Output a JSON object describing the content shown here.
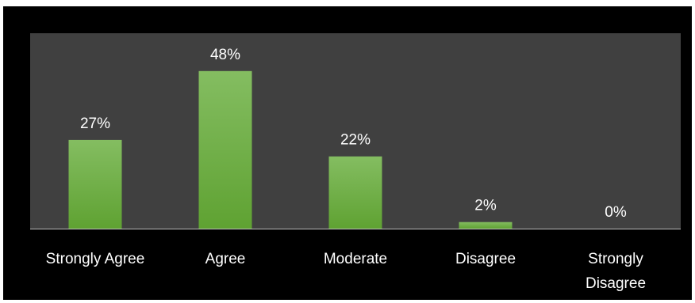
{
  "chart_data": {
    "type": "bar",
    "title": "",
    "xlabel": "",
    "ylabel": "",
    "categories": [
      [
        "Strongly Agree"
      ],
      [
        "Agree"
      ],
      [
        "Moderate"
      ],
      [
        "Disagree"
      ],
      [
        "Strongly",
        "Disagree"
      ]
    ],
    "series": [
      {
        "values": [
          27,
          48,
          22,
          2,
          0
        ],
        "labels": [
          "27%",
          "48%",
          "22%",
          "2%",
          "0%"
        ]
      }
    ],
    "ylim": [
      0,
      50
    ],
    "grid": false,
    "legend": "none",
    "colors": {
      "frame_background": "#000000",
      "plot_background": "#404040",
      "bar_top": "#84bd61",
      "bar_bottom": "#5fa232",
      "axis": "#bfbfbf",
      "text": "#ffffff"
    }
  }
}
